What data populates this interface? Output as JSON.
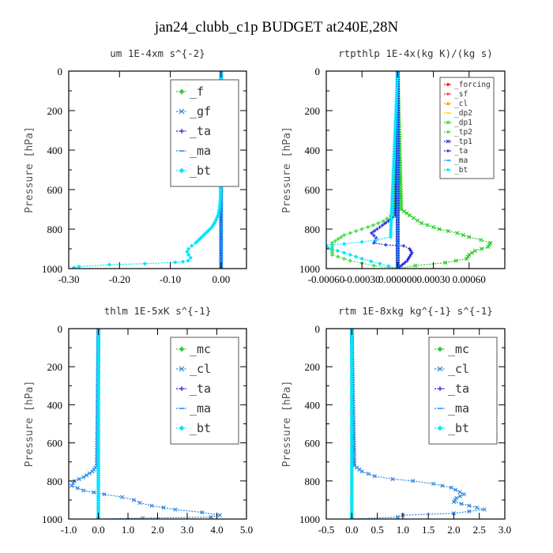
{
  "figure_title": "jan24_clubb_c1p  BUDGET at240E,28N",
  "chart_data": [
    {
      "type": "line",
      "title": "um   1E-4xm s^{-2}",
      "ylabel": "Pressure [hPa]",
      "xlim": [
        -0.3,
        0.05
      ],
      "ylim": [
        1000,
        0
      ],
      "xticks": [
        "-0.30",
        "-0.20",
        "-0.10",
        "0.00"
      ],
      "xtick_values": [
        -0.3,
        -0.2,
        -0.1,
        0.0
      ],
      "yticks": [
        "0",
        "200",
        "400",
        "600",
        "800",
        "1000"
      ],
      "ytick_values": [
        0,
        200,
        400,
        600,
        800,
        1000
      ],
      "legend_position": "top-right",
      "legend_size": "large",
      "series": [
        {
          "name": "_f",
          "color": "#2ecc40",
          "marker": "diamond",
          "x": [
            0.0,
            0.0
          ],
          "y": [
            0,
            1000
          ]
        },
        {
          "name": "_gf",
          "color": "#2e86de",
          "marker": "cross",
          "x": [
            0.0,
            0.0
          ],
          "y": [
            0,
            1000
          ]
        },
        {
          "name": "_ta",
          "color": "#2222dd",
          "marker": "plus",
          "x": [
            0.0,
            0.0
          ],
          "y": [
            0,
            1000
          ]
        },
        {
          "name": "_ma",
          "color": "#1e90ff",
          "marker": "dash",
          "x": [
            0.0,
            0.0
          ],
          "y": [
            0,
            1000
          ]
        },
        {
          "name": "_bt",
          "color": "#00e5ff",
          "marker": "diamond",
          "x": [
            0.0,
            -0.001,
            -0.003,
            -0.006,
            -0.011,
            -0.018,
            -0.026,
            -0.034,
            -0.042,
            -0.05,
            -0.058,
            -0.064,
            -0.067,
            -0.064,
            -0.06,
            -0.065,
            -0.075,
            -0.09,
            -0.15,
            -0.22,
            -0.28,
            -0.29
          ],
          "y": [
            0,
            640,
            690,
            730,
            760,
            790,
            810,
            830,
            850,
            870,
            885,
            900,
            915,
            930,
            945,
            960,
            965,
            968,
            975,
            980,
            990,
            995
          ]
        }
      ]
    },
    {
      "type": "line",
      "title": "rtpthlp   1E-4x(kg K)/(kg s)",
      "ylabel": "Pressure [hPa]",
      "xlim": [
        -0.0006,
        0.0009
      ],
      "ylim": [
        1000,
        0
      ],
      "xticks": [
        "-0.00060",
        "-0.00030",
        "0.000000",
        "0.00030",
        "0.00060"
      ],
      "xtick_values": [
        -0.0006,
        -0.0003,
        0.0,
        0.0003,
        0.0006
      ],
      "yticks": [
        "0",
        "200",
        "400",
        "600",
        "800",
        "1000"
      ],
      "ytick_values": [
        0,
        200,
        400,
        600,
        800,
        1000
      ],
      "legend_position": "top-right",
      "legend_size": "small",
      "series": [
        {
          "name": "_forcing",
          "color": "#dd2222",
          "marker": "diamond",
          "x": [
            0.0,
            0.0
          ],
          "y": [
            0,
            1000
          ]
        },
        {
          "name": "_sf",
          "color": "#ee3333",
          "marker": "plus",
          "x": [
            0.0,
            0.0
          ],
          "y": [
            0,
            1000
          ]
        },
        {
          "name": "_cl",
          "color": "#ff9900",
          "marker": "triangle",
          "x": [
            0.0,
            0.0
          ],
          "y": [
            0,
            1000
          ]
        },
        {
          "name": "_dp2",
          "color": "#ffcc00",
          "marker": "dash",
          "x": [
            0.0,
            0.0
          ],
          "y": [
            0,
            1000
          ]
        },
        {
          "name": "_dp1",
          "color": "#22cc22",
          "marker": "cross",
          "x": [
            0.0,
            3e-05,
            0.0001,
            0.0002,
            0.00035,
            0.0005,
            0.0006,
            0.0007,
            0.00078,
            0.00076,
            0.00065,
            0.0006,
            0.00058,
            0.0004,
            0.00015,
            0.0
          ],
          "y": [
            0,
            700,
            730,
            770,
            800,
            820,
            840,
            855,
            870,
            890,
            910,
            930,
            950,
            970,
            985,
            1000
          ]
        },
        {
          "name": "_tp2",
          "color": "#55dd55",
          "marker": "diamond",
          "x": [
            0.0,
            -3e-05,
            -0.00012,
            -0.00025,
            -0.00035,
            -0.00045,
            -0.0005,
            -0.00055,
            -0.00055,
            -0.00055,
            -0.0004,
            -0.0002,
            0.0
          ],
          "y": [
            0,
            720,
            760,
            790,
            810,
            830,
            850,
            870,
            900,
            930,
            960,
            985,
            1000
          ]
        },
        {
          "name": "_tp1",
          "color": "#2222cc",
          "marker": "cross",
          "x": [
            0.0,
            0.0
          ],
          "y": [
            0,
            1000
          ]
        },
        {
          "name": "_ta",
          "color": "#2222dd",
          "marker": "plus",
          "x": [
            0.0,
            -2e-05,
            -8e-05,
            -0.00015,
            -0.00022,
            -0.00018,
            -0.0002,
            -0.0001,
            5e-05,
            0.0001,
            0.00012,
            0.0001,
            8e-05,
            4e-05,
            0.0
          ],
          "y": [
            0,
            730,
            760,
            790,
            820,
            845,
            870,
            880,
            885,
            900,
            920,
            940,
            960,
            980,
            1000
          ]
        },
        {
          "name": "_ma",
          "color": "#1e90ff",
          "marker": "dash",
          "x": [
            0.0,
            0.0
          ],
          "y": [
            0,
            1000
          ]
        },
        {
          "name": "_bt",
          "color": "#00e5ff",
          "marker": "diamond",
          "x": [
            0.0,
            -6e-05,
            -0.00018,
            -0.0003,
            -0.00045,
            -0.00062,
            -0.00056,
            -0.00045,
            -0.0003,
            -0.00015,
            0.0
          ],
          "y": [
            0,
            840,
            855,
            865,
            875,
            880,
            900,
            920,
            950,
            975,
            1000
          ]
        }
      ]
    },
    {
      "type": "line",
      "title": "thlm   1E-5xK s^{-1}",
      "ylabel": "Pressure [hPa]",
      "xlim": [
        -1.0,
        5.0
      ],
      "ylim": [
        1000,
        0
      ],
      "xticks": [
        "-1.0",
        "0.0",
        "1.0",
        "2.0",
        "3.0",
        "4.0",
        "5.0"
      ],
      "xtick_values": [
        -1.0,
        0.0,
        1.0,
        2.0,
        3.0,
        4.0,
        5.0
      ],
      "yticks": [
        "0",
        "200",
        "400",
        "600",
        "800",
        "1000"
      ],
      "ytick_values": [
        0,
        200,
        400,
        600,
        800,
        1000
      ],
      "legend_position": "top-right",
      "legend_size": "large",
      "series": [
        {
          "name": "_mc",
          "color": "#2ecc40",
          "marker": "diamond",
          "x": [
            0.0,
            0.0
          ],
          "y": [
            0,
            1000
          ]
        },
        {
          "name": "_cl",
          "color": "#2e86de",
          "marker": "cross",
          "x": [
            0.0,
            -0.05,
            -0.2,
            -0.5,
            -0.8,
            -0.9,
            -0.5,
            0.2,
            0.8,
            1.2,
            1.4,
            1.8,
            2.6,
            3.5,
            4.1,
            3.8,
            1.5,
            0.0
          ],
          "y": [
            0,
            720,
            750,
            780,
            800,
            825,
            850,
            870,
            885,
            900,
            915,
            930,
            950,
            965,
            980,
            990,
            995,
            1000
          ]
        },
        {
          "name": "_ta",
          "color": "#2222dd",
          "marker": "plus",
          "x": [
            0.0,
            0.0
          ],
          "y": [
            0,
            1000
          ]
        },
        {
          "name": "_ma",
          "color": "#1e90ff",
          "marker": "dash",
          "x": [
            0.0,
            0.0
          ],
          "y": [
            0,
            1000
          ]
        },
        {
          "name": "_bt",
          "color": "#00e5ff",
          "marker": "diamond",
          "x": [
            0.0,
            0.0
          ],
          "y": [
            0,
            1000
          ]
        }
      ]
    },
    {
      "type": "line",
      "title": "rtm   1E-8xkg kg^{-1} s^{-1}",
      "ylabel": "Pressure [hPa]",
      "xlim": [
        -0.5,
        3.0
      ],
      "ylim": [
        1000,
        0
      ],
      "xticks": [
        "-0.5",
        "0.0",
        "0.5",
        "1.0",
        "1.5",
        "2.0",
        "2.5",
        "3.0"
      ],
      "xtick_values": [
        -0.5,
        0.0,
        0.5,
        1.0,
        1.5,
        2.0,
        2.5,
        3.0
      ],
      "yticks": [
        "0",
        "200",
        "400",
        "600",
        "800",
        "1000"
      ],
      "ytick_values": [
        0,
        200,
        400,
        600,
        800,
        1000
      ],
      "legend_position": "top-right",
      "legend_size": "large",
      "series": [
        {
          "name": "_mc",
          "color": "#2ecc40",
          "marker": "diamond",
          "x": [
            0.0,
            0.0
          ],
          "y": [
            0,
            1000
          ]
        },
        {
          "name": "_cl",
          "color": "#2e86de",
          "marker": "cross",
          "x": [
            0.0,
            0.05,
            0.2,
            0.45,
            0.8,
            1.2,
            1.6,
            1.95,
            2.2,
            2.05,
            2.0,
            2.3,
            2.6,
            2.0,
            1.0,
            0.9,
            0.0
          ],
          "y": [
            0,
            720,
            750,
            775,
            790,
            800,
            815,
            835,
            870,
            890,
            910,
            930,
            950,
            970,
            980,
            990,
            1000
          ]
        },
        {
          "name": "_ta",
          "color": "#2222dd",
          "marker": "plus",
          "x": [
            0.0,
            0.0
          ],
          "y": [
            0,
            1000
          ]
        },
        {
          "name": "_ma",
          "color": "#1e90ff",
          "marker": "dash",
          "x": [
            0.0,
            0.0
          ],
          "y": [
            0,
            1000
          ]
        },
        {
          "name": "_bt",
          "color": "#00e5ff",
          "marker": "diamond",
          "x": [
            0.0,
            0.0
          ],
          "y": [
            0,
            1000
          ]
        }
      ]
    }
  ]
}
